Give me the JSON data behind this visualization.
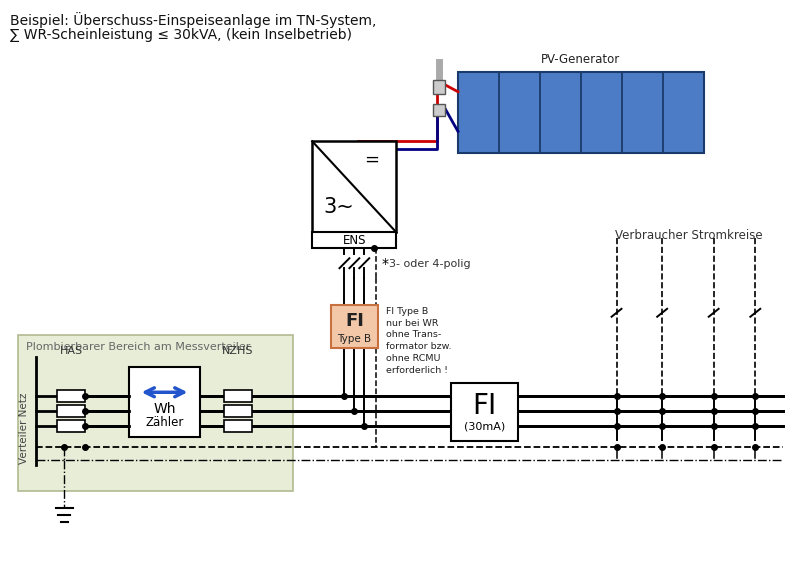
{
  "title_line1": "Beispiel: Überschuss-Einspeiseanlage im TN-System,",
  "title_line2": "∑ WR-Scheinleistung ≤ 30kVA, (kein Inselbetrieb)",
  "pv_label": "PV-Generator",
  "pv_color": "#4d7cc7",
  "pv_frame": "#1a3a6b",
  "ens_label": "ENS",
  "fi_b_label1": "FI",
  "fi_b_label2": "Type B",
  "fi_b_color": "#f2c8a8",
  "fi_b_border": "#c87040",
  "fi_b_note": "FI Type B\nnur bei WR\nohne Trans-\nformator bzw.\nohne RCMU\nerforderlich !",
  "fi_label": "FI",
  "fi_sublabel": "(30mA)",
  "plomb_label": "Plombierbarer Bereich am Messverteiler",
  "plomb_bg": "#e8edd8",
  "plomb_border": "#b0ba90",
  "verteiler_label": "Verteiler Netz",
  "has_label": "HAS",
  "nzhs_label": "NZHS",
  "wh_label1": "Wh",
  "wh_label2": "Zähler",
  "verbraucher_label": "Verbraucher Stromkreise",
  "note_polig": "3- oder 4-polig",
  "lc": "#000000",
  "red": "#cc0000",
  "dark_blue": "#000080",
  "arrow_blue": "#2255cc",
  "bg": "#ffffff"
}
